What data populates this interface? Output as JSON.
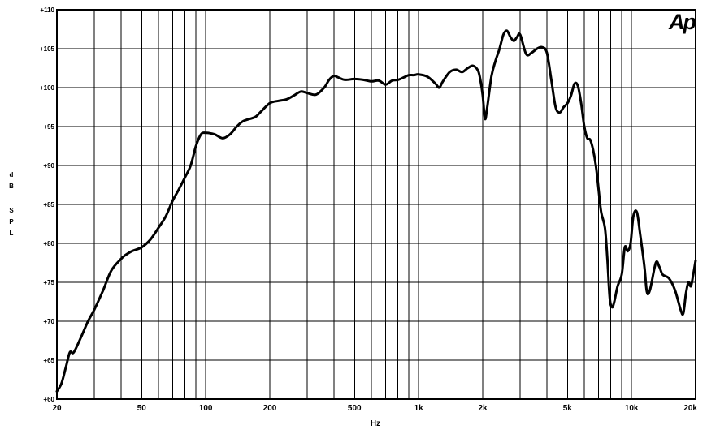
{
  "chart_data": {
    "type": "line",
    "title": "",
    "xlabel": "Hz",
    "ylabel": "dB SPL",
    "x_scale": "log",
    "xlim": [
      20,
      20000
    ],
    "ylim": [
      60,
      110
    ],
    "grid": true,
    "logo": "Ap",
    "y_ticks": [
      {
        "value": 60,
        "label": "+60"
      },
      {
        "value": 65,
        "label": "+65"
      },
      {
        "value": 70,
        "label": "+70"
      },
      {
        "value": 75,
        "label": "+75"
      },
      {
        "value": 80,
        "label": "+80"
      },
      {
        "value": 85,
        "label": "+85"
      },
      {
        "value": 90,
        "label": "+90"
      },
      {
        "value": 95,
        "label": "+95"
      },
      {
        "value": 100,
        "label": "+100"
      },
      {
        "value": 105,
        "label": "+105"
      },
      {
        "value": 110,
        "label": "+110"
      }
    ],
    "x_ticks": [
      {
        "value": 20,
        "label": "20"
      },
      {
        "value": 50,
        "label": "50"
      },
      {
        "value": 100,
        "label": "100"
      },
      {
        "value": 200,
        "label": "200"
      },
      {
        "value": 500,
        "label": "500"
      },
      {
        "value": 1000,
        "label": "1k"
      },
      {
        "value": 2000,
        "label": "2k"
      },
      {
        "value": 5000,
        "label": "5k"
      },
      {
        "value": 10000,
        "label": "10k"
      },
      {
        "value": 20000,
        "label": "20k"
      }
    ],
    "x_grid": [
      20,
      30,
      40,
      50,
      60,
      70,
      80,
      90,
      100,
      200,
      300,
      400,
      500,
      600,
      700,
      800,
      900,
      1000,
      2000,
      3000,
      4000,
      5000,
      6000,
      7000,
      8000,
      9000,
      10000,
      20000
    ],
    "series": [
      {
        "name": "",
        "points": [
          [
            20,
            61.0
          ],
          [
            21,
            62.0
          ],
          [
            22,
            64.0
          ],
          [
            23,
            66.0
          ],
          [
            24,
            66.0
          ],
          [
            26,
            68.0
          ],
          [
            28,
            70.0
          ],
          [
            30,
            71.5
          ],
          [
            33,
            74.0
          ],
          [
            36,
            76.5
          ],
          [
            40,
            78.0
          ],
          [
            42,
            78.5
          ],
          [
            45,
            79.0
          ],
          [
            50,
            79.5
          ],
          [
            55,
            80.5
          ],
          [
            60,
            82.0
          ],
          [
            65,
            83.5
          ],
          [
            70,
            85.5
          ],
          [
            75,
            87.0
          ],
          [
            80,
            88.5
          ],
          [
            85,
            90.0
          ],
          [
            90,
            92.5
          ],
          [
            95,
            94.0
          ],
          [
            100,
            94.2
          ],
          [
            110,
            94.0
          ],
          [
            120,
            93.5
          ],
          [
            130,
            94.0
          ],
          [
            140,
            95.0
          ],
          [
            150,
            95.7
          ],
          [
            170,
            96.2
          ],
          [
            180,
            96.8
          ],
          [
            200,
            98.0
          ],
          [
            220,
            98.3
          ],
          [
            240,
            98.5
          ],
          [
            260,
            99.0
          ],
          [
            280,
            99.5
          ],
          [
            300,
            99.3
          ],
          [
            330,
            99.1
          ],
          [
            360,
            100.0
          ],
          [
            380,
            101.0
          ],
          [
            400,
            101.5
          ],
          [
            420,
            101.3
          ],
          [
            450,
            101.0
          ],
          [
            500,
            101.1
          ],
          [
            550,
            101.0
          ],
          [
            600,
            100.8
          ],
          [
            650,
            100.9
          ],
          [
            700,
            100.4
          ],
          [
            750,
            100.9
          ],
          [
            800,
            101.0
          ],
          [
            850,
            101.3
          ],
          [
            900,
            101.6
          ],
          [
            950,
            101.6
          ],
          [
            1000,
            101.7
          ],
          [
            1100,
            101.4
          ],
          [
            1200,
            100.5
          ],
          [
            1250,
            100.0
          ],
          [
            1300,
            100.8
          ],
          [
            1400,
            102.0
          ],
          [
            1500,
            102.3
          ],
          [
            1600,
            102.0
          ],
          [
            1700,
            102.5
          ],
          [
            1800,
            102.8
          ],
          [
            1900,
            102.2
          ],
          [
            1950,
            101.0
          ],
          [
            2000,
            99.0
          ],
          [
            2050,
            96.0
          ],
          [
            2100,
            97.5
          ],
          [
            2200,
            101.5
          ],
          [
            2300,
            103.5
          ],
          [
            2400,
            105.0
          ],
          [
            2500,
            106.8
          ],
          [
            2600,
            107.3
          ],
          [
            2700,
            106.5
          ],
          [
            2800,
            106.0
          ],
          [
            2900,
            106.5
          ],
          [
            3000,
            106.8
          ],
          [
            3200,
            104.3
          ],
          [
            3400,
            104.5
          ],
          [
            3600,
            105.0
          ],
          [
            3800,
            105.2
          ],
          [
            4000,
            104.5
          ],
          [
            4200,
            101.0
          ],
          [
            4400,
            97.5
          ],
          [
            4600,
            96.8
          ],
          [
            4800,
            97.5
          ],
          [
            5000,
            98.0
          ],
          [
            5200,
            99.0
          ],
          [
            5400,
            100.5
          ],
          [
            5600,
            100.2
          ],
          [
            5800,
            98.0
          ],
          [
            6000,
            95.0
          ],
          [
            6200,
            93.5
          ],
          [
            6400,
            93.3
          ],
          [
            6600,
            92.0
          ],
          [
            6800,
            90.0
          ],
          [
            7000,
            87.0
          ],
          [
            7200,
            84.0
          ],
          [
            7500,
            82.0
          ],
          [
            7700,
            78.0
          ],
          [
            7900,
            73.0
          ],
          [
            8100,
            71.8
          ],
          [
            8300,
            72.5
          ],
          [
            8600,
            74.5
          ],
          [
            9000,
            76.0
          ],
          [
            9300,
            79.5
          ],
          [
            9600,
            79.0
          ],
          [
            9900,
            80.0
          ],
          [
            10200,
            83.5
          ],
          [
            10600,
            84.0
          ],
          [
            11000,
            81.0
          ],
          [
            11500,
            77.0
          ],
          [
            11800,
            73.8
          ],
          [
            12200,
            74.0
          ],
          [
            13000,
            77.5
          ],
          [
            13500,
            77.0
          ],
          [
            14000,
            76.0
          ],
          [
            15000,
            75.5
          ],
          [
            16000,
            74.0
          ],
          [
            17000,
            71.5
          ],
          [
            17500,
            71.0
          ],
          [
            18000,
            73.5
          ],
          [
            18500,
            75.0
          ],
          [
            19000,
            74.5
          ],
          [
            19500,
            76.0
          ],
          [
            20000,
            77.8
          ]
        ]
      }
    ]
  }
}
